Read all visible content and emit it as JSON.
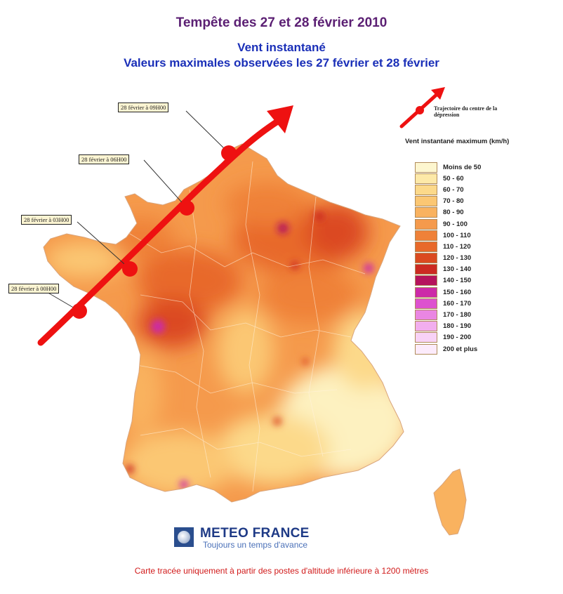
{
  "title": "Tempête des 27 et 28 février 2010",
  "subtitle1": "Vent instantané",
  "subtitle2": "Valeurs maximales observées les 27 février et 28 février",
  "track_labels": [
    "28 février à 09H00",
    "28 février à 06H00",
    "28 février à 03H00",
    "28 février à 00H00"
  ],
  "trajectory_legend": "Trajectoire du centre de la dépression",
  "legend_title": "Vent instantané maximum (km/h)",
  "legend": [
    {
      "label": "Moins de 50",
      "color": "#fdf6cf"
    },
    {
      "label": "50 - 60",
      "color": "#fde9a8"
    },
    {
      "label": "60 - 70",
      "color": "#fcd98a"
    },
    {
      "label": "70 - 80",
      "color": "#fbc773"
    },
    {
      "label": "80 - 90",
      "color": "#f9b25f"
    },
    {
      "label": "90 - 100",
      "color": "#f59a4c"
    },
    {
      "label": "100 - 110",
      "color": "#ef8138"
    },
    {
      "label": "110 - 120",
      "color": "#e8692a"
    },
    {
      "label": "120 - 130",
      "color": "#db4a20"
    },
    {
      "label": "130 - 140",
      "color": "#cc2a22"
    },
    {
      "label": "140 - 150",
      "color": "#b5135d"
    },
    {
      "label": "150 - 160",
      "color": "#cc2aa8"
    },
    {
      "label": "160 - 170",
      "color": "#dd52cf"
    },
    {
      "label": "170 - 180",
      "color": "#ea86e2"
    },
    {
      "label": "180 - 190",
      "color": "#f2aeee"
    },
    {
      "label": "190 - 200",
      "color": "#f8d2f6"
    },
    {
      "label": "200 et plus",
      "color": "#fcebfb"
    }
  ],
  "brand": "METEO FRANCE",
  "tagline": "Toujours un temps d'avance",
  "footnote": "Carte tracée uniquement à partir des postes d'altitude inférieure à 1200 mètres"
}
